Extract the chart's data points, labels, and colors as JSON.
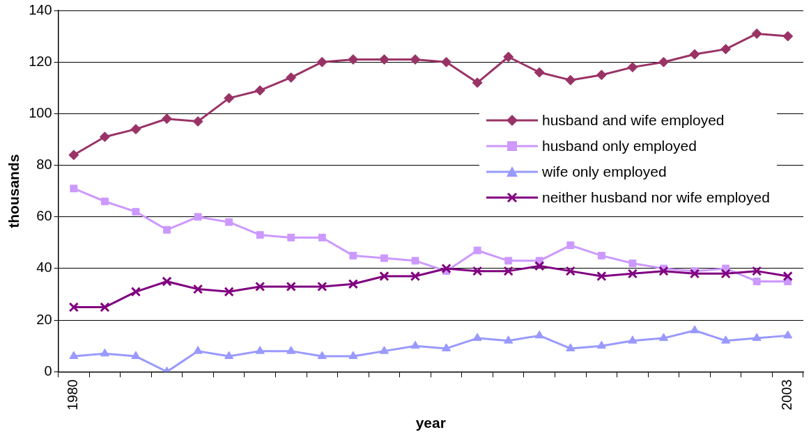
{
  "chart_data": {
    "type": "line",
    "xlabel": "year",
    "ylabel": "thousands",
    "categories": [
      "1980",
      null,
      null,
      null,
      null,
      null,
      null,
      null,
      null,
      null,
      null,
      null,
      null,
      null,
      null,
      null,
      null,
      null,
      null,
      null,
      null,
      null,
      null,
      "2003"
    ],
    "series": [
      {
        "name": "husband and wife employed",
        "color": "#993366",
        "marker": "diamond",
        "values": [
          84,
          91,
          94,
          98,
          97,
          106,
          109,
          114,
          120,
          121,
          121,
          121,
          120,
          112,
          122,
          116,
          113,
          115,
          118,
          120,
          123,
          125,
          131,
          130
        ]
      },
      {
        "name": "husband only employed",
        "color": "#cc99ff",
        "marker": "square",
        "values": [
          71,
          66,
          62,
          55,
          60,
          58,
          53,
          52,
          52,
          45,
          44,
          43,
          39,
          47,
          43,
          43,
          49,
          45,
          42,
          40,
          39,
          40,
          35,
          35
        ]
      },
      {
        "name": "wife only employed",
        "color": "#9999ff",
        "marker": "triangle",
        "values": [
          6,
          7,
          6,
          0,
          8,
          6,
          8,
          8,
          6,
          6,
          8,
          10,
          9,
          13,
          12,
          14,
          9,
          10,
          12,
          13,
          16,
          12,
          13,
          14
        ]
      },
      {
        "name": "neither husband nor wife employed",
        "color": "#800080",
        "marker": "cross",
        "values": [
          25,
          25,
          31,
          35,
          32,
          31,
          33,
          33,
          33,
          34,
          37,
          37,
          40,
          39,
          39,
          41,
          39,
          37,
          38,
          39,
          38,
          38,
          39,
          37
        ]
      }
    ],
    "ylim": [
      0,
      140
    ],
    "yticks": [
      0,
      20,
      40,
      60,
      80,
      100,
      120,
      140
    ],
    "grid": "y",
    "legend": "right"
  }
}
